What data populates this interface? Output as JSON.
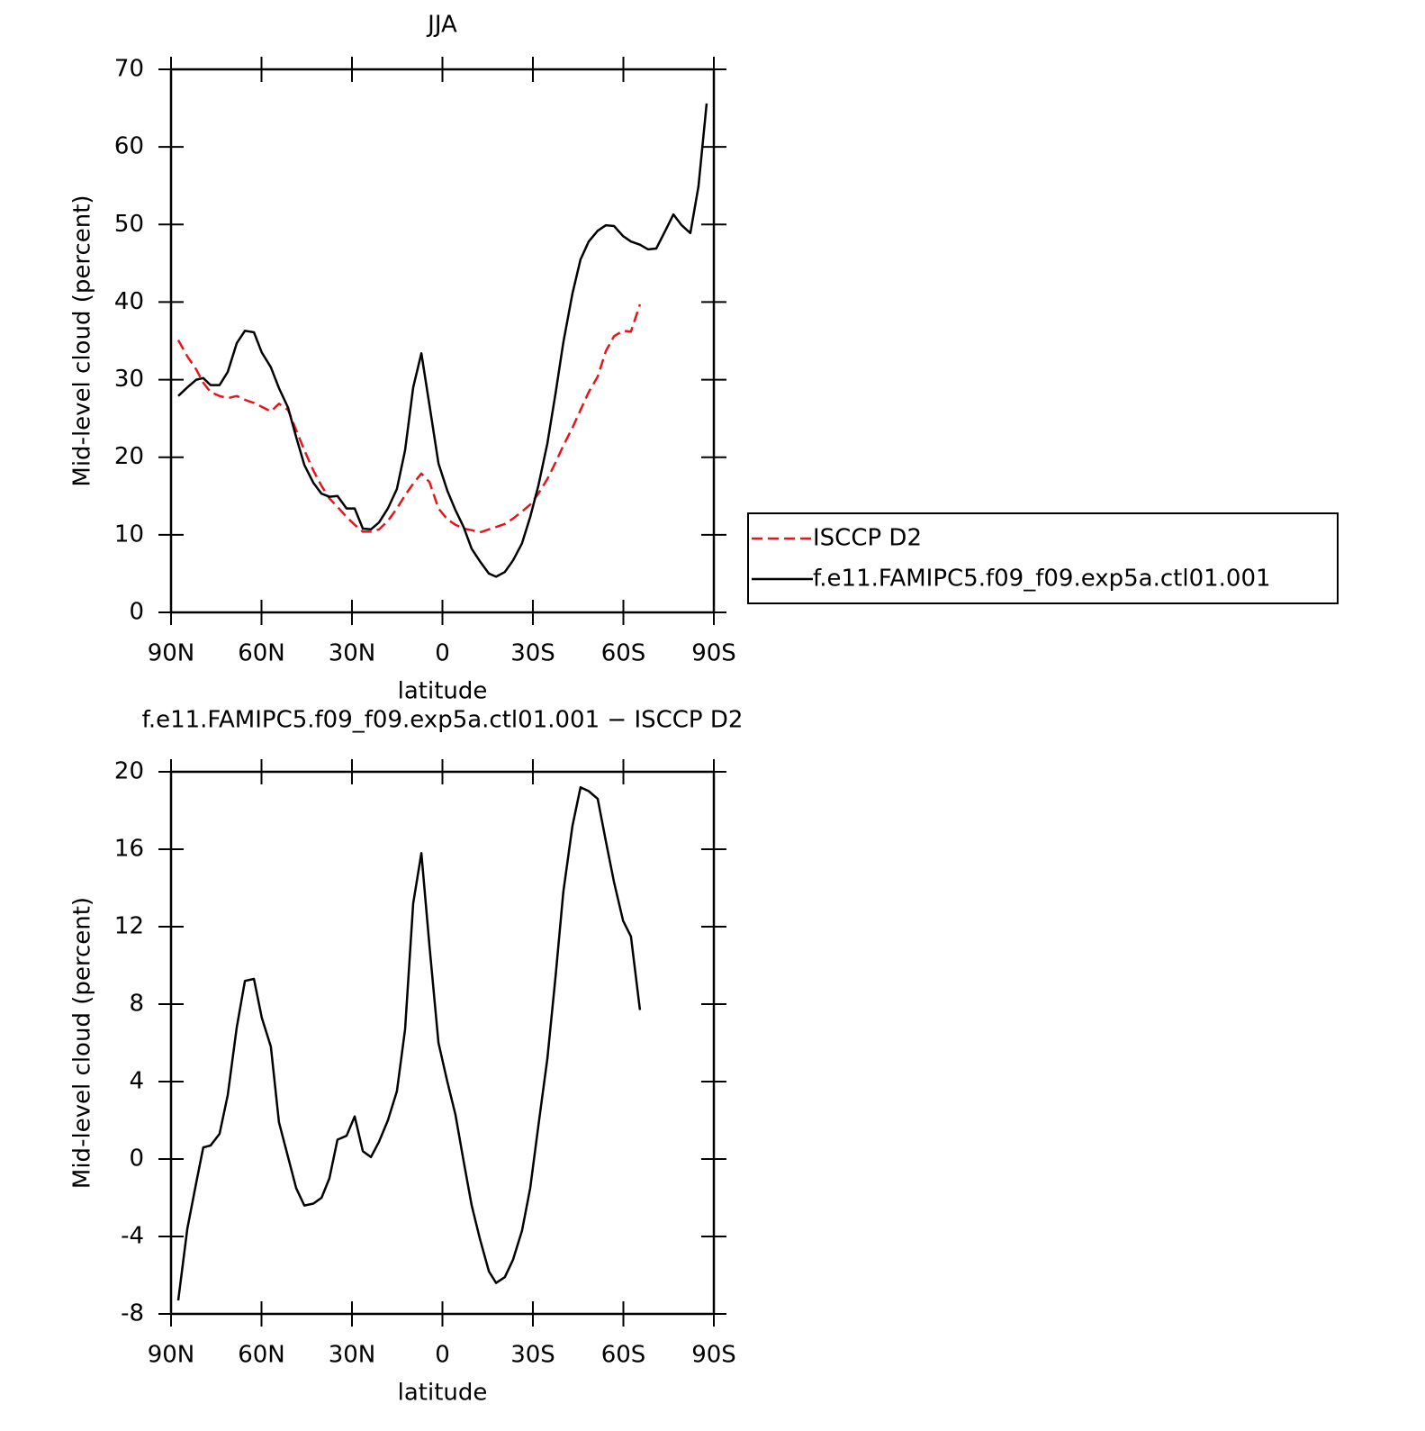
{
  "chart_data": [
    {
      "type": "line",
      "title": "JJA",
      "xlabel": "latitude",
      "ylabel": "Mid-level cloud (percent)",
      "x": [
        87.6,
        84.6,
        81.6,
        79.3,
        76.9,
        73.9,
        71.2,
        68.2,
        65.5,
        62.5,
        59.9,
        56.9,
        54.2,
        51.2,
        48.5,
        45.8,
        42.8,
        40.1,
        37.5,
        34.8,
        31.8,
        29.1,
        26.4,
        23.7,
        21.0,
        18.1,
        15.1,
        12.4,
        9.7,
        7.0,
        4.3,
        1.3,
        -1.6,
        -4.3,
        -7.0,
        -9.7,
        -12.4,
        -15.4,
        -17.8,
        -20.7,
        -23.4,
        -26.4,
        -29.1,
        -31.8,
        -34.8,
        -37.5,
        -40.1,
        -43.1,
        -45.8,
        -48.5,
        -51.5,
        -54.2,
        -56.9,
        -59.9,
        -62.5,
        -65.5,
        -68.2,
        -70.9,
        -73.9,
        -76.6,
        -79.3,
        -82.2,
        -84.9,
        -87.6
      ],
      "series": [
        {
          "name": "ISCCP D2",
          "color": "#e8141c",
          "dashed": true,
          "values": [
            35.1,
            33.0,
            31.3,
            29.6,
            28.4,
            27.9,
            27.6,
            27.9,
            27.4,
            27.0,
            26.5,
            25.9,
            26.9,
            26.1,
            23.5,
            20.9,
            18.3,
            16.3,
            14.7,
            13.6,
            12.3,
            11.3,
            10.4,
            10.4,
            10.7,
            11.8,
            13.4,
            15.1,
            16.6,
            17.9,
            16.8,
            13.4,
            12.0,
            11.3,
            10.8,
            10.6,
            10.3,
            10.7,
            11.0,
            11.4,
            12.1,
            13.0,
            13.9,
            15.3,
            17.2,
            19.3,
            21.5,
            23.8,
            26.1,
            28.4,
            30.4,
            33.7,
            35.6,
            36.3,
            36.2,
            39.7,
            null,
            null,
            null,
            null,
            null,
            null,
            null,
            null
          ]
        },
        {
          "name": "f.e11.FAMIPC5.f09_f09.exp5a.ctl01.001",
          "color": "#000000",
          "dashed": false,
          "values": [
            27.9,
            29.0,
            30.0,
            30.2,
            29.3,
            29.3,
            31.0,
            34.7,
            36.3,
            36.1,
            33.5,
            31.6,
            28.9,
            26.4,
            22.6,
            19.0,
            16.7,
            15.3,
            14.9,
            15.0,
            13.4,
            13.4,
            10.8,
            10.7,
            11.6,
            13.4,
            15.9,
            20.9,
            29.0,
            33.4,
            26.7,
            19.2,
            15.7,
            13.2,
            11.0,
            8.2,
            6.6,
            5.0,
            4.6,
            5.2,
            6.7,
            8.9,
            12.3,
            16.3,
            21.8,
            28.2,
            34.8,
            41.1,
            45.5,
            47.8,
            49.2,
            49.9,
            49.8,
            48.5,
            47.8,
            47.4,
            46.8,
            46.9,
            49.2,
            51.3,
            49.9,
            48.9,
            54.9,
            65.6
          ]
        }
      ],
      "xlim": [
        90,
        -90
      ],
      "xticks": [
        {
          "value": 90,
          "label": "90N"
        },
        {
          "value": 60,
          "label": "60N"
        },
        {
          "value": 30,
          "label": "30N"
        },
        0,
        {
          "value": -30,
          "label": "30S"
        },
        {
          "value": -60,
          "label": "60S"
        },
        {
          "value": -90,
          "label": "90S"
        }
      ],
      "ylim": [
        0,
        70
      ],
      "yticks": [
        0,
        10,
        20,
        30,
        40,
        50,
        60,
        70
      ],
      "legend": "right"
    },
    {
      "type": "line",
      "title": "f.e11.FAMIPC5.f09_f09.exp5a.ctl01.001 − ISCCP D2",
      "xlabel": "latitude",
      "ylabel": "Mid-level cloud (percent)",
      "x": [
        87.6,
        84.6,
        81.6,
        79.3,
        76.9,
        73.9,
        71.2,
        68.2,
        65.5,
        62.5,
        59.9,
        56.9,
        54.2,
        51.2,
        48.5,
        45.8,
        42.8,
        40.1,
        37.5,
        34.8,
        31.8,
        29.1,
        26.4,
        23.7,
        21.0,
        18.1,
        15.1,
        12.4,
        9.7,
        7.0,
        4.3,
        1.3,
        -1.6,
        -4.3,
        -7.0,
        -9.7,
        -12.4,
        -15.4,
        -17.8,
        -20.7,
        -23.4,
        -26.4,
        -29.1,
        -31.8,
        -34.8,
        -37.5,
        -40.1,
        -43.1,
        -45.8,
        -48.5,
        -51.5,
        -54.2,
        -56.9,
        -59.9,
        -62.5,
        -65.5
      ],
      "series": [
        {
          "color": "#000000",
          "dashed": false,
          "values": [
            -7.3,
            -3.6,
            -1.2,
            0.6,
            0.7,
            1.3,
            3.3,
            6.8,
            9.2,
            9.3,
            7.3,
            5.8,
            1.9,
            0.1,
            -1.5,
            -2.4,
            -2.3,
            -2.0,
            -1.0,
            1.0,
            1.2,
            2.2,
            0.4,
            0.1,
            0.9,
            2.0,
            3.5,
            6.7,
            13.2,
            15.8,
            11.0,
            6.0,
            4.0,
            2.3,
            -0.1,
            -2.4,
            -4.1,
            -5.8,
            -6.4,
            -6.1,
            -5.2,
            -3.7,
            -1.5,
            1.7,
            5.2,
            9.4,
            13.8,
            17.2,
            19.2,
            19.0,
            18.6,
            16.4,
            14.3,
            12.3,
            11.5,
            7.7
          ]
        }
      ],
      "xlim": [
        90,
        -90
      ],
      "xticks": [
        {
          "value": 90,
          "label": "90N"
        },
        {
          "value": 60,
          "label": "60N"
        },
        {
          "value": 30,
          "label": "30N"
        },
        0,
        {
          "value": -30,
          "label": "30S"
        },
        {
          "value": -60,
          "label": "60S"
        },
        {
          "value": -90,
          "label": "90S"
        }
      ],
      "ylim": [
        -8,
        20
      ],
      "yticks": [
        -8,
        -4,
        0,
        4,
        8,
        12,
        16,
        20
      ]
    }
  ]
}
